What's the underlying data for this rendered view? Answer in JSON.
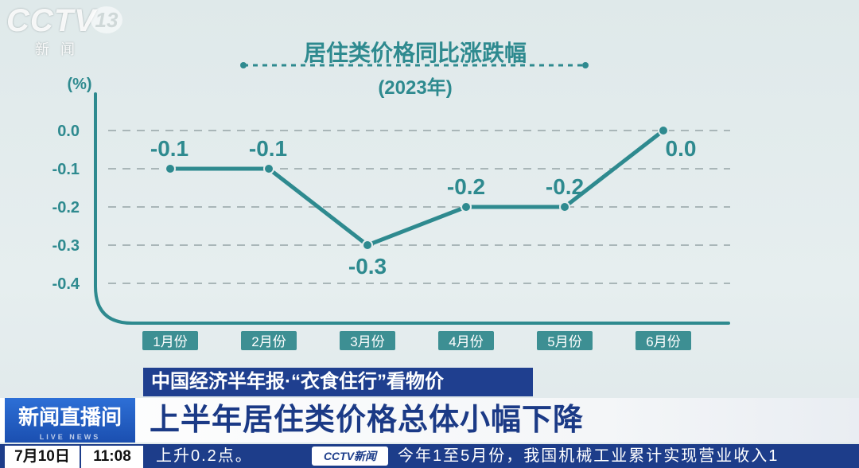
{
  "broadcast": {
    "logo_text": "CCTV",
    "channel_number": "13",
    "channel_name": "新闻",
    "program_banner": "中国经济半年报·“衣食住行”看物价",
    "show_name": "新闻直播间",
    "show_name_sub": "LIVE NEWS",
    "headline": "上半年居住类价格总体小幅下降",
    "date": "7月10日",
    "time": "11:08",
    "ticker_left": "上升0.2点。",
    "ticker_logo": "CCTV新闻",
    "ticker_right": "今年1至5月份，我国机械工业累计实现营业收入1"
  },
  "colors": {
    "accent": "#2e8a8f",
    "grid": "#a9b6b8",
    "label_bg": "#3d8f93",
    "banner_blue": "#1f3f8f"
  },
  "chart_data": {
    "type": "line",
    "title": "居住类价格同比涨跌幅",
    "subtitle": "(2023年)",
    "ylabel": "(%)",
    "categories": [
      "1月份",
      "2月份",
      "3月份",
      "4月份",
      "5月份",
      "6月份"
    ],
    "values": [
      -0.1,
      -0.1,
      -0.3,
      -0.2,
      -0.2,
      0.0
    ],
    "data_labels": [
      "-0.1",
      "-0.1",
      "-0.3",
      "-0.2",
      "-0.2",
      "0.0"
    ],
    "yticks": [
      "0.0",
      "-0.1",
      "-0.2",
      "-0.3",
      "-0.4"
    ],
    "ylim": [
      -0.4,
      0.0
    ],
    "grid": true
  }
}
